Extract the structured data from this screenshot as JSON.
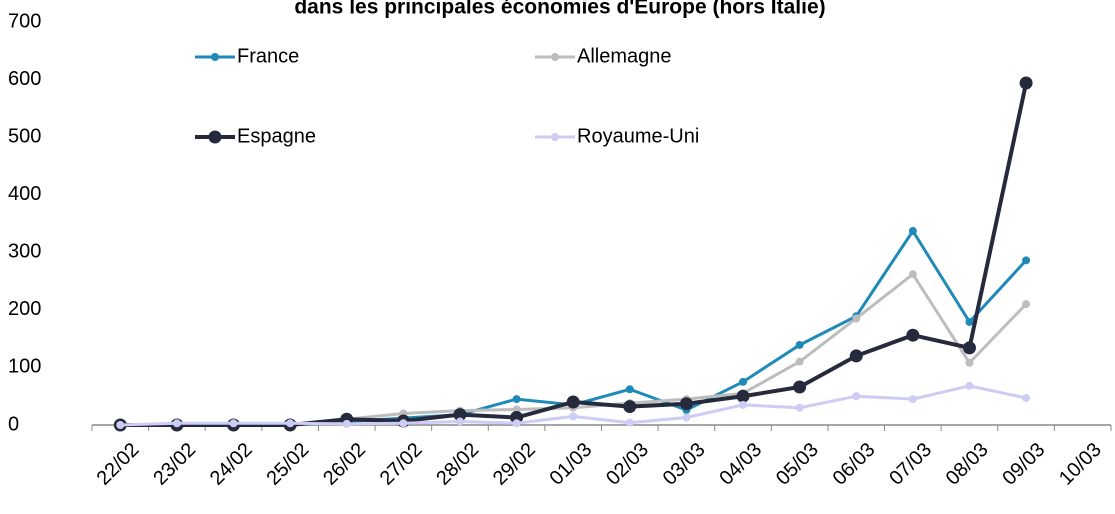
{
  "chart_data": {
    "type": "line",
    "title": "dans les principales économies d'Europe (hors Italie)",
    "categories": [
      "22/02",
      "23/02",
      "24/02",
      "25/02",
      "26/02",
      "27/02",
      "28/02",
      "29/02",
      "01/03",
      "02/03",
      "03/03",
      "04/03",
      "05/03",
      "06/03",
      "07/03",
      "08/03",
      "09/03",
      "10/03"
    ],
    "series": [
      {
        "name": "France",
        "color": "#1f8ab8",
        "values": [
          0,
          2,
          0,
          0,
          6,
          12,
          18,
          45,
          35,
          62,
          26,
          75,
          139,
          189,
          337,
          179,
          286,
          null
        ]
      },
      {
        "name": "Allemagne",
        "color": "#bdbdbd",
        "values": [
          0,
          1,
          0,
          0,
          10,
          20,
          25,
          27,
          30,
          38,
          45,
          55,
          110,
          185,
          262,
          108,
          210,
          null
        ]
      },
      {
        "name": "Espagne",
        "color": "#262a3d",
        "values": [
          0,
          0,
          0,
          0,
          10,
          7,
          18,
          13,
          40,
          32,
          37,
          50,
          66,
          120,
          156,
          134,
          594,
          null
        ]
      },
      {
        "name": "Royaume-Uni",
        "color": "#ccccf5",
        "values": [
          0,
          3,
          3,
          3,
          2,
          3,
          6,
          3,
          15,
          4,
          13,
          35,
          30,
          50,
          45,
          68,
          47,
          null
        ]
      }
    ],
    "ylim": [
      0,
      700
    ],
    "yticks": [
      0,
      100,
      200,
      300,
      400,
      500,
      600,
      700
    ],
    "grid": false
  }
}
